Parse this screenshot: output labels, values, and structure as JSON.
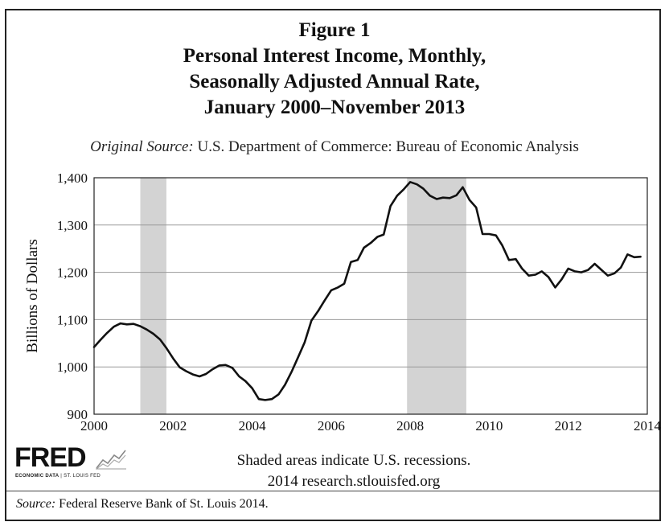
{
  "figure": {
    "title_lines": [
      "Figure 1",
      "Personal Interest Income, Monthly,",
      "Seasonally Adjusted Annual Rate,",
      "January 2000–November 2013"
    ],
    "original_source_label": "Original Source:",
    "original_source_text": " U.S. Department of Commerce: Bureau of Economic Analysis",
    "shaded_note_line1": "Shaded areas indicate U.S. recessions.",
    "shaded_note_line2": "2014 research.stlouisfed.org",
    "footer_source_label": "Source:",
    "footer_source_text": " Federal Reserve Bank of St. Louis 2014."
  },
  "logo": {
    "word": "FRED",
    "subtitle_bold": "ECONOMIC DATA",
    "subtitle_sep": " | ",
    "subtitle_rest": "ST. LOUIS FED",
    "spark_icon": "line-chart-icon"
  },
  "chart_data": {
    "type": "line",
    "ylabel": "Billions of Dollars",
    "xlabel": "",
    "xlim": [
      2000,
      2014
    ],
    "ylim": [
      900,
      1400
    ],
    "x_ticks": [
      2000,
      2002,
      2004,
      2006,
      2008,
      2010,
      2012,
      2014
    ],
    "x_tick_labels": [
      "2000",
      "2002",
      "2004",
      "2006",
      "2008",
      "2010",
      "2012",
      "2014"
    ],
    "y_ticks": [
      900,
      1000,
      1100,
      1200,
      1300,
      1400
    ],
    "y_tick_labels": [
      "900",
      "1,000",
      "1,100",
      "1,200",
      "1,300",
      "1,400"
    ],
    "grid": "horizontal",
    "line_color": "#111111",
    "recession_color": "#d3d3d3",
    "recessions": [
      {
        "start": 2001.17,
        "end": 2001.83
      },
      {
        "start": 2007.92,
        "end": 2009.42
      }
    ],
    "series": [
      {
        "x": [
          2000.0,
          2000.17,
          2000.33,
          2000.5,
          2000.67,
          2000.83,
          2001.0,
          2001.17,
          2001.33,
          2001.5,
          2001.67,
          2001.83,
          2002.0,
          2002.17,
          2002.33,
          2002.5,
          2002.67,
          2002.83,
          2003.0,
          2003.17,
          2003.33,
          2003.5,
          2003.67,
          2003.83,
          2004.0,
          2004.17,
          2004.33,
          2004.5,
          2004.67,
          2004.83,
          2005.0,
          2005.17,
          2005.33,
          2005.5,
          2005.67,
          2005.83,
          2006.0,
          2006.17,
          2006.33,
          2006.5,
          2006.67,
          2006.83,
          2007.0,
          2007.17,
          2007.33,
          2007.5,
          2007.67,
          2007.83,
          2008.0,
          2008.17,
          2008.33,
          2008.5,
          2008.67,
          2008.83,
          2009.0,
          2009.17,
          2009.33,
          2009.5,
          2009.67,
          2009.83,
          2010.0,
          2010.17,
          2010.33,
          2010.5,
          2010.67,
          2010.83,
          2011.0,
          2011.17,
          2011.33,
          2011.5,
          2011.67,
          2011.83,
          2012.0,
          2012.17,
          2012.33,
          2012.5,
          2012.67,
          2012.83,
          2013.0,
          2013.17,
          2013.33,
          2013.5,
          2013.67,
          2013.83
        ],
        "y": [
          1042,
          1058,
          1072,
          1085,
          1092,
          1090,
          1091,
          1086,
          1079,
          1070,
          1058,
          1040,
          1018,
          999,
          991,
          984,
          980,
          985,
          995,
          1003,
          1004,
          998,
          980,
          970,
          955,
          932,
          930,
          932,
          942,
          962,
          990,
          1022,
          1052,
          1098,
          1118,
          1140,
          1162,
          1168,
          1176,
          1222,
          1226,
          1252,
          1262,
          1275,
          1280,
          1340,
          1362,
          1375,
          1391,
          1386,
          1377,
          1362,
          1355,
          1358,
          1357,
          1363,
          1380,
          1353,
          1337,
          1281,
          1281,
          1278,
          1257,
          1226,
          1228,
          1208,
          1193,
          1195,
          1202,
          1190,
          1168,
          1185,
          1208,
          1202,
          1200,
          1205,
          1218,
          1206,
          1193,
          1198,
          1210,
          1238,
          1232,
          1233
        ]
      }
    ]
  }
}
